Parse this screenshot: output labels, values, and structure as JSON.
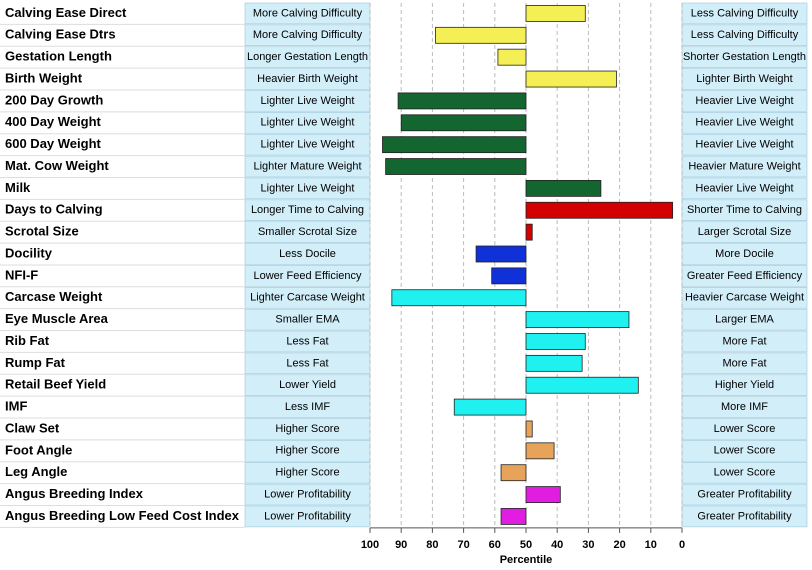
{
  "chart_data": {
    "type": "bar",
    "orientation": "horizontal",
    "xlabel": "Percentile",
    "xlim": [
      100,
      0
    ],
    "xticks": [
      100,
      90,
      80,
      70,
      60,
      50,
      40,
      30,
      20,
      10,
      0
    ],
    "grid": true,
    "categories": [
      "Calving Ease Direct",
      "Calving Ease Dtrs",
      "Gestation Length",
      "Birth Weight",
      "200 Day Growth",
      "400 Day Weight",
      "600 Day Weight",
      "Mat. Cow Weight",
      "Milk",
      "Days to Calving",
      "Scrotal Size",
      "Docility",
      "NFI-F",
      "Carcase Weight",
      "Eye Muscle Area",
      "Rib Fat",
      "Rump Fat",
      "Retail Beef Yield",
      "IMF",
      "Claw Set",
      "Foot Angle",
      "Leg Angle",
      "Angus Breeding Index",
      "Angus Breeding Low Feed Cost Index"
    ],
    "left_labels": [
      "More Calving Difficulty",
      "More Calving Difficulty",
      "Longer Gestation Length",
      "Heavier Birth Weight",
      "Lighter Live Weight",
      "Lighter Live Weight",
      "Lighter Live Weight",
      "Lighter Mature Weight",
      "Lighter Live Weight",
      "Longer Time to Calving",
      "Smaller Scrotal Size",
      "Less Docile",
      "Lower Feed Efficiency",
      "Lighter Carcase Weight",
      "Smaller EMA",
      "Less Fat",
      "Less Fat",
      "Lower Yield",
      "Less IMF",
      "Higher Score",
      "Higher Score",
      "Higher Score",
      "Lower Profitability",
      "Lower Profitability"
    ],
    "right_labels": [
      "Less Calving Difficulty",
      "Less Calving Difficulty",
      "Shorter Gestation Length",
      "Lighter Birth Weight",
      "Heavier Live Weight",
      "Heavier Live Weight",
      "Heavier Live Weight",
      "Heavier Mature Weight",
      "Heavier Live Weight",
      "Shorter Time to Calving",
      "Larger Scrotal Size",
      "More Docile",
      "Greater Feed Efficiency",
      "Heavier Carcase Weight",
      "Larger EMA",
      "More Fat",
      "More Fat",
      "Higher Yield",
      "More IMF",
      "Lower Score",
      "Lower Score",
      "Lower Score",
      "Greater Profitability",
      "Greater Profitability"
    ],
    "values": [
      31,
      79,
      59,
      21,
      91,
      90,
      96,
      95,
      26,
      3,
      48,
      66,
      61,
      93,
      17,
      31,
      32,
      14,
      73,
      48,
      41,
      58,
      39,
      58
    ],
    "colors": [
      "#f3ef55",
      "#f3ef55",
      "#f3ef55",
      "#f3ef55",
      "#13662f",
      "#13662f",
      "#13662f",
      "#13662f",
      "#13662f",
      "#d40000",
      "#d40000",
      "#1030d8",
      "#1030d8",
      "#1ff0f0",
      "#1ff0f0",
      "#1ff0f0",
      "#1ff0f0",
      "#1ff0f0",
      "#1ff0f0",
      "#e8a35a",
      "#e8a35a",
      "#e8a35a",
      "#e01de0",
      "#e01de0"
    ]
  }
}
